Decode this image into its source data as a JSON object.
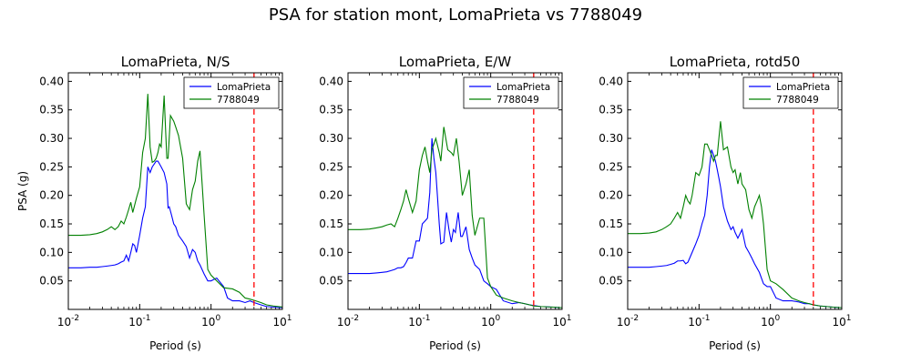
{
  "figure": {
    "title": "PSA for station mont, LomaPrieta vs 7788049"
  },
  "colors": {
    "LomaPrieta": "#0000ff",
    "7788049": "#008000",
    "limit": "#ff0000"
  },
  "chart_data": [
    {
      "type": "line",
      "title": "LomaPrieta, N/S",
      "xlabel": "Period (s)",
      "ylabel": "PSA (g)",
      "xscale": "log",
      "xlim": [
        0.01,
        10
      ],
      "ylim": [
        0,
        0.415
      ],
      "xticks": [
        "10",
        "10",
        "10",
        "10"
      ],
      "xtick_exps": [
        "-2",
        "-1",
        "0",
        "1"
      ],
      "yticks": [
        "0.05",
        "0.10",
        "0.15",
        "0.20",
        "0.25",
        "0.30",
        "0.35",
        "0.40"
      ],
      "ytick_values": [
        0.05,
        0.1,
        0.15,
        0.2,
        0.25,
        0.3,
        0.35,
        0.4
      ],
      "legend": "top-right",
      "vline_x": 4.0,
      "series": [
        {
          "name": "LomaPrieta",
          "x": [
            0.01,
            0.015,
            0.02,
            0.025,
            0.03,
            0.035,
            0.04,
            0.045,
            0.05,
            0.055,
            0.06,
            0.065,
            0.07,
            0.075,
            0.08,
            0.085,
            0.09,
            0.1,
            0.11,
            0.12,
            0.13,
            0.14,
            0.15,
            0.16,
            0.17,
            0.18,
            0.19,
            0.2,
            0.22,
            0.24,
            0.25,
            0.26,
            0.28,
            0.3,
            0.32,
            0.35,
            0.4,
            0.45,
            0.5,
            0.55,
            0.6,
            0.65,
            0.7,
            0.8,
            0.9,
            1.0,
            1.2,
            1.5,
            1.7,
            2.0,
            2.5,
            3.0,
            3.5,
            4.0,
            5.0,
            6.0,
            7.5,
            10.0
          ],
          "y": [
            0.073,
            0.073,
            0.074,
            0.074,
            0.075,
            0.076,
            0.077,
            0.078,
            0.08,
            0.083,
            0.085,
            0.095,
            0.085,
            0.1,
            0.115,
            0.112,
            0.1,
            0.13,
            0.16,
            0.18,
            0.25,
            0.24,
            0.25,
            0.255,
            0.26,
            0.26,
            0.255,
            0.25,
            0.24,
            0.22,
            0.178,
            0.18,
            0.165,
            0.15,
            0.145,
            0.13,
            0.12,
            0.11,
            0.09,
            0.105,
            0.1,
            0.085,
            0.078,
            0.062,
            0.05,
            0.05,
            0.055,
            0.04,
            0.02,
            0.015,
            0.015,
            0.012,
            0.015,
            0.012,
            0.008,
            0.005,
            0.004,
            0.003
          ]
        },
        {
          "name": "7788049",
          "x": [
            0.01,
            0.015,
            0.02,
            0.025,
            0.03,
            0.035,
            0.04,
            0.045,
            0.05,
            0.055,
            0.06,
            0.065,
            0.07,
            0.075,
            0.08,
            0.09,
            0.1,
            0.11,
            0.12,
            0.13,
            0.14,
            0.15,
            0.16,
            0.17,
            0.18,
            0.19,
            0.2,
            0.22,
            0.24,
            0.25,
            0.27,
            0.3,
            0.32,
            0.35,
            0.4,
            0.45,
            0.5,
            0.55,
            0.6,
            0.65,
            0.7,
            0.75,
            0.8,
            0.9,
            1.0,
            1.2,
            1.5,
            2.0,
            2.5,
            3.0,
            3.5,
            4.0,
            5.0,
            6.0,
            7.5,
            10.0
          ],
          "y": [
            0.13,
            0.13,
            0.131,
            0.133,
            0.136,
            0.14,
            0.145,
            0.14,
            0.145,
            0.155,
            0.15,
            0.162,
            0.175,
            0.188,
            0.17,
            0.195,
            0.215,
            0.275,
            0.3,
            0.378,
            0.285,
            0.258,
            0.26,
            0.265,
            0.275,
            0.29,
            0.285,
            0.375,
            0.265,
            0.265,
            0.34,
            0.33,
            0.32,
            0.305,
            0.265,
            0.185,
            0.175,
            0.21,
            0.225,
            0.26,
            0.278,
            0.22,
            0.165,
            0.07,
            0.06,
            0.05,
            0.038,
            0.036,
            0.03,
            0.02,
            0.018,
            0.016,
            0.012,
            0.008,
            0.006,
            0.004
          ]
        }
      ]
    },
    {
      "type": "line",
      "title": "LomaPrieta, E/W",
      "xlabel": "Period (s)",
      "ylabel": "",
      "xscale": "log",
      "xlim": [
        0.01,
        10
      ],
      "ylim": [
        0,
        0.415
      ],
      "xticks": [
        "10",
        "10",
        "10",
        "10"
      ],
      "xtick_exps": [
        "-2",
        "-1",
        "0",
        "1"
      ],
      "yticks": [
        "0.05",
        "0.10",
        "0.15",
        "0.20",
        "0.25",
        "0.30",
        "0.35",
        "0.40"
      ],
      "ytick_values": [
        0.05,
        0.1,
        0.15,
        0.2,
        0.25,
        0.3,
        0.35,
        0.4
      ],
      "legend": "top-right",
      "vline_x": 4.0,
      "series": [
        {
          "name": "LomaPrieta",
          "x": [
            0.01,
            0.015,
            0.02,
            0.025,
            0.03,
            0.035,
            0.04,
            0.045,
            0.05,
            0.055,
            0.06,
            0.065,
            0.07,
            0.08,
            0.09,
            0.1,
            0.11,
            0.12,
            0.13,
            0.14,
            0.15,
            0.16,
            0.17,
            0.18,
            0.19,
            0.2,
            0.22,
            0.24,
            0.26,
            0.28,
            0.3,
            0.32,
            0.35,
            0.38,
            0.4,
            0.45,
            0.5,
            0.55,
            0.6,
            0.7,
            0.8,
            0.9,
            1.0,
            1.2,
            1.5,
            2.0,
            2.5,
            3.0,
            3.5,
            4.0,
            5.0,
            7.5,
            10.0
          ],
          "y": [
            0.063,
            0.063,
            0.063,
            0.064,
            0.065,
            0.066,
            0.068,
            0.07,
            0.073,
            0.073,
            0.075,
            0.082,
            0.09,
            0.09,
            0.12,
            0.12,
            0.15,
            0.155,
            0.16,
            0.205,
            0.3,
            0.265,
            0.24,
            0.195,
            0.15,
            0.115,
            0.118,
            0.17,
            0.14,
            0.118,
            0.14,
            0.135,
            0.17,
            0.128,
            0.128,
            0.145,
            0.105,
            0.09,
            0.078,
            0.07,
            0.05,
            0.045,
            0.04,
            0.035,
            0.015,
            0.01,
            0.012,
            0.01,
            0.008,
            0.007,
            0.005,
            0.004,
            0.003
          ]
        },
        {
          "name": "7788049",
          "x": [
            0.01,
            0.015,
            0.02,
            0.025,
            0.03,
            0.035,
            0.04,
            0.045,
            0.05,
            0.055,
            0.06,
            0.065,
            0.07,
            0.08,
            0.09,
            0.1,
            0.11,
            0.12,
            0.13,
            0.14,
            0.15,
            0.17,
            0.19,
            0.2,
            0.22,
            0.25,
            0.28,
            0.3,
            0.33,
            0.36,
            0.4,
            0.45,
            0.5,
            0.55,
            0.6,
            0.7,
            0.8,
            0.9,
            1.0,
            1.2,
            1.5,
            2.0,
            2.5,
            3.0,
            3.5,
            4.0,
            5.0,
            7.5,
            10.0
          ],
          "y": [
            0.14,
            0.14,
            0.141,
            0.143,
            0.145,
            0.148,
            0.15,
            0.145,
            0.16,
            0.175,
            0.19,
            0.21,
            0.195,
            0.17,
            0.19,
            0.245,
            0.27,
            0.285,
            0.26,
            0.24,
            0.28,
            0.3,
            0.275,
            0.26,
            0.32,
            0.28,
            0.275,
            0.27,
            0.3,
            0.26,
            0.2,
            0.22,
            0.245,
            0.165,
            0.13,
            0.16,
            0.16,
            0.055,
            0.04,
            0.025,
            0.02,
            0.015,
            0.012,
            0.01,
            0.008,
            0.006,
            0.005,
            0.004,
            0.003
          ]
        }
      ]
    },
    {
      "type": "line",
      "title": "LomaPrieta, rotd50",
      "xlabel": "Period (s)",
      "ylabel": "",
      "xscale": "log",
      "xlim": [
        0.01,
        10
      ],
      "ylim": [
        0,
        0.415
      ],
      "xticks": [
        "10",
        "10",
        "10",
        "10"
      ],
      "xtick_exps": [
        "-2",
        "-1",
        "0",
        "1"
      ],
      "yticks": [
        "0.05",
        "0.10",
        "0.15",
        "0.20",
        "0.25",
        "0.30",
        "0.35",
        "0.40"
      ],
      "ytick_values": [
        0.05,
        0.1,
        0.15,
        0.2,
        0.25,
        0.3,
        0.35,
        0.4
      ],
      "legend": "top-right",
      "vline_x": 4.0,
      "series": [
        {
          "name": "LomaPrieta",
          "x": [
            0.01,
            0.015,
            0.02,
            0.025,
            0.03,
            0.035,
            0.04,
            0.045,
            0.05,
            0.055,
            0.06,
            0.065,
            0.07,
            0.08,
            0.09,
            0.1,
            0.11,
            0.12,
            0.13,
            0.14,
            0.15,
            0.16,
            0.17,
            0.18,
            0.19,
            0.2,
            0.22,
            0.25,
            0.28,
            0.3,
            0.32,
            0.35,
            0.4,
            0.45,
            0.5,
            0.55,
            0.6,
            0.7,
            0.8,
            0.9,
            1.0,
            1.2,
            1.5,
            2.0,
            2.5,
            3.0,
            3.5,
            4.0,
            5.0,
            7.5,
            10.0
          ],
          "y": [
            0.074,
            0.074,
            0.074,
            0.075,
            0.076,
            0.077,
            0.079,
            0.081,
            0.085,
            0.085,
            0.086,
            0.08,
            0.083,
            0.1,
            0.115,
            0.13,
            0.15,
            0.165,
            0.2,
            0.25,
            0.28,
            0.27,
            0.26,
            0.245,
            0.23,
            0.215,
            0.18,
            0.155,
            0.14,
            0.145,
            0.135,
            0.125,
            0.14,
            0.11,
            0.1,
            0.09,
            0.08,
            0.065,
            0.045,
            0.04,
            0.04,
            0.02,
            0.015,
            0.015,
            0.013,
            0.01,
            0.01,
            0.008,
            0.006,
            0.004,
            0.003
          ]
        },
        {
          "name": "7788049",
          "x": [
            0.01,
            0.015,
            0.02,
            0.025,
            0.03,
            0.035,
            0.04,
            0.045,
            0.05,
            0.055,
            0.06,
            0.065,
            0.07,
            0.075,
            0.08,
            0.09,
            0.1,
            0.11,
            0.12,
            0.13,
            0.14,
            0.15,
            0.16,
            0.17,
            0.18,
            0.2,
            0.22,
            0.25,
            0.28,
            0.3,
            0.32,
            0.35,
            0.38,
            0.4,
            0.45,
            0.5,
            0.55,
            0.6,
            0.65,
            0.7,
            0.75,
            0.8,
            0.9,
            1.0,
            1.2,
            1.5,
            2.0,
            2.5,
            3.0,
            3.5,
            4.0,
            5.0,
            7.5,
            10.0
          ],
          "y": [
            0.133,
            0.133,
            0.134,
            0.136,
            0.14,
            0.145,
            0.15,
            0.16,
            0.17,
            0.16,
            0.18,
            0.2,
            0.19,
            0.185,
            0.2,
            0.24,
            0.235,
            0.25,
            0.29,
            0.29,
            0.28,
            0.27,
            0.26,
            0.27,
            0.27,
            0.33,
            0.28,
            0.285,
            0.25,
            0.24,
            0.245,
            0.22,
            0.24,
            0.22,
            0.21,
            0.175,
            0.16,
            0.18,
            0.19,
            0.2,
            0.18,
            0.15,
            0.07,
            0.05,
            0.045,
            0.035,
            0.02,
            0.015,
            0.012,
            0.01,
            0.008,
            0.006,
            0.004,
            0.003
          ]
        }
      ]
    }
  ]
}
